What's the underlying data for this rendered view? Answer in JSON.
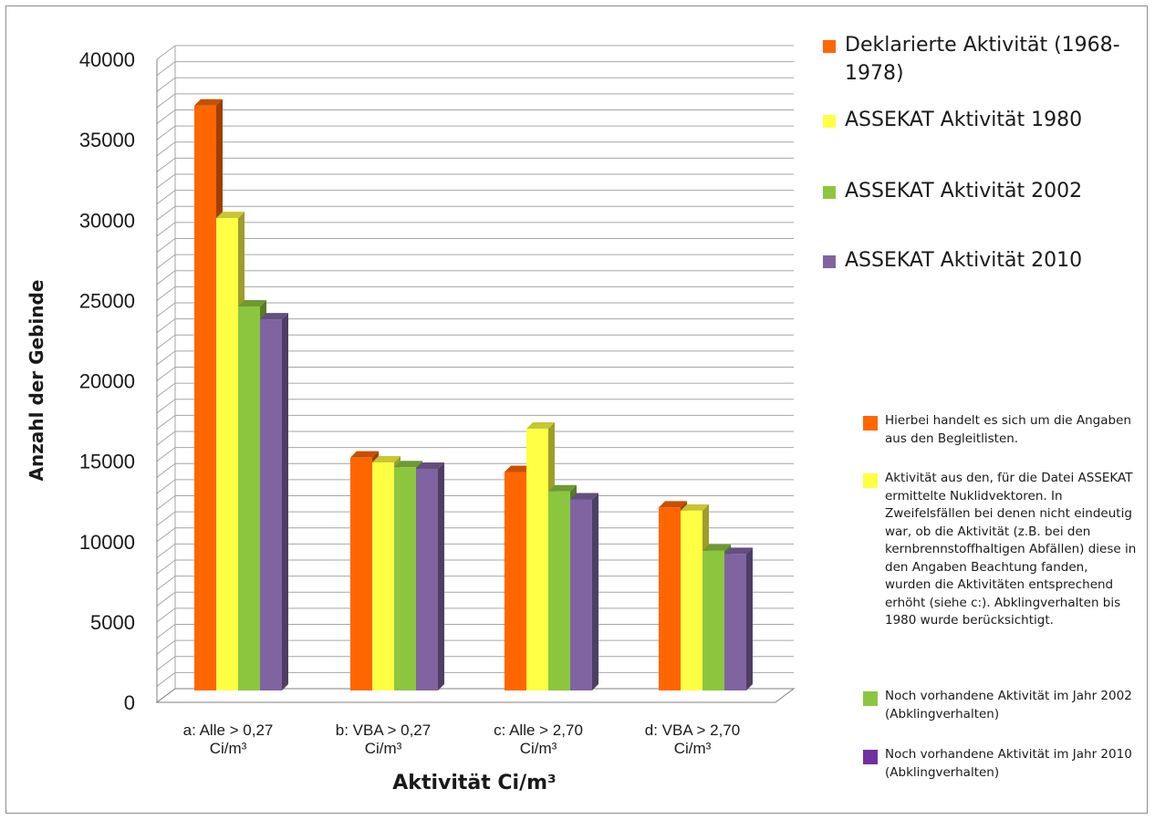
{
  "chart_data": {
    "type": "bar",
    "xlabel": "Aktivität Ci/m³",
    "ylabel": "Anzahl der Gebinde",
    "ylim": [
      0,
      40000
    ],
    "yticks": [
      "0",
      "5000",
      "10000",
      "15000",
      "20000",
      "25000",
      "30000",
      "35000",
      "40000"
    ],
    "grid": true,
    "legend_position": "right",
    "categories": [
      "a: Alle > 0,27 Ci/m³",
      "b: VBA > 0,27 Ci/m³",
      "c: Alle > 2,70 Ci/m³",
      "d: VBA > 2,70 Ci/m³"
    ],
    "category_lines": [
      [
        "a: Alle > 0,27",
        "Ci/m³"
      ],
      [
        "b: VBA > 0,27",
        "Ci/m³"
      ],
      [
        "c: Alle > 2,70",
        "Ci/m³"
      ],
      [
        "d: VBA > 2,70",
        "Ci/m³"
      ]
    ],
    "series": [
      {
        "name": "Deklarierte Aktivität  (1968-1978)",
        "color": "#ff6600",
        "values": [
          36500,
          14600,
          13700,
          11500
        ]
      },
      {
        "name": "ASSEKAT Aktivität 1980",
        "color": "#ffff44",
        "values": [
          29500,
          14300,
          16400,
          11300
        ]
      },
      {
        "name": "ASSEKAT Aktivität 2002",
        "color": "#8cc63f",
        "values": [
          24000,
          14000,
          12500,
          8800
        ]
      },
      {
        "name": "ASSEKAT Aktivität 2010",
        "color": "#8064a2",
        "values": [
          23200,
          13900,
          12000,
          8600
        ]
      }
    ]
  },
  "legend": {
    "items": [
      {
        "label": "Deklarierte Aktivität  (1968-1978)",
        "color": "#ff6600"
      },
      {
        "label": "ASSEKAT Aktivität 1980",
        "color": "#ffff44"
      },
      {
        "label": "ASSEKAT Aktivität 2002",
        "color": "#8cc63f"
      },
      {
        "label": "ASSEKAT Aktivität 2010",
        "color": "#8064a2"
      }
    ]
  },
  "notes": [
    {
      "text": "Hierbei handelt es sich um die Angaben aus den Begleitlisten.",
      "color": "#ff6600"
    },
    {
      "text": "Aktivität aus den, für die Datei ASSEKAT ermittelte Nuklidvektoren. In Zweifelsfällen bei denen nicht eindeutig war, ob die Aktivität (z.B. bei den kernbrennstoffhaltigen Abfällen) diese in den Angaben Beachtung fanden, wurden die Aktivitäten entsprechend erhöht (siehe c:). Abklingverhalten bis 1980 wurde berücksichtigt.",
      "color": "#ffff44"
    },
    {
      "text": "Noch vorhandene Aktivität im Jahr 2002 (Abklingverhalten)",
      "color": "#8cc63f"
    },
    {
      "text": "Noch vorhandene Aktivität im Jahr 2010 (Abklingverhalten)",
      "color": "#7030a0"
    }
  ]
}
